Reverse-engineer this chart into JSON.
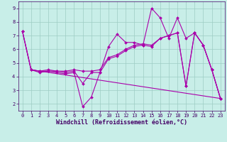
{
  "xlabel": "Windchill (Refroidissement éolien,°C)",
  "bg_color": "#c8eee8",
  "grid_color": "#9dccc4",
  "line_color": "#aa00aa",
  "xlim": [
    -0.5,
    23.5
  ],
  "ylim": [
    1.5,
    9.5
  ],
  "xticks": [
    0,
    1,
    2,
    3,
    4,
    5,
    6,
    7,
    8,
    9,
    10,
    11,
    12,
    13,
    14,
    15,
    16,
    17,
    18,
    19,
    20,
    21,
    22,
    23
  ],
  "yticks": [
    2,
    3,
    4,
    5,
    6,
    7,
    8,
    9
  ],
  "line1_x": [
    0,
    1,
    2,
    3,
    4,
    5,
    6,
    7,
    8,
    9,
    10,
    11,
    12,
    13,
    14,
    15,
    16,
    17,
    18,
    19,
    20,
    21,
    22,
    23
  ],
  "line1_y": [
    7.3,
    4.5,
    4.3,
    4.4,
    4.3,
    4.2,
    4.3,
    1.8,
    2.5,
    4.3,
    5.3,
    5.5,
    5.9,
    6.2,
    6.3,
    6.2,
    6.8,
    7.0,
    7.2,
    3.3,
    7.2,
    6.3,
    4.5,
    2.4
  ],
  "line2_x": [
    0,
    1,
    2,
    3,
    4,
    5,
    6,
    7,
    8,
    9,
    10,
    11,
    12,
    13,
    14,
    15,
    16,
    17,
    18,
    19,
    20,
    21,
    22,
    23
  ],
  "line2_y": [
    7.3,
    4.5,
    4.4,
    4.4,
    4.4,
    4.3,
    4.4,
    3.5,
    4.3,
    4.3,
    6.2,
    7.1,
    6.5,
    6.5,
    6.3,
    9.0,
    8.3,
    6.8,
    8.3,
    6.8,
    7.2,
    6.3,
    4.5,
    2.4
  ],
  "line3_x": [
    0,
    1,
    2,
    3,
    4,
    5,
    6,
    7,
    8,
    9,
    10,
    11,
    12,
    13,
    14,
    15,
    16,
    17,
    18,
    19,
    20,
    21,
    22,
    23
  ],
  "line3_y": [
    7.3,
    4.5,
    4.4,
    4.5,
    4.4,
    4.4,
    4.5,
    4.4,
    4.4,
    4.5,
    5.4,
    5.6,
    6.0,
    6.3,
    6.4,
    6.3,
    6.8,
    7.0,
    7.2,
    3.3,
    7.2,
    6.3,
    4.5,
    2.4
  ],
  "line4_x": [
    1,
    23
  ],
  "line4_y": [
    4.5,
    2.4
  ],
  "tick_color": "#440066",
  "xlabel_color": "#440066",
  "xlabel_fontsize": 6.0,
  "tick_fontsize": 5.0
}
